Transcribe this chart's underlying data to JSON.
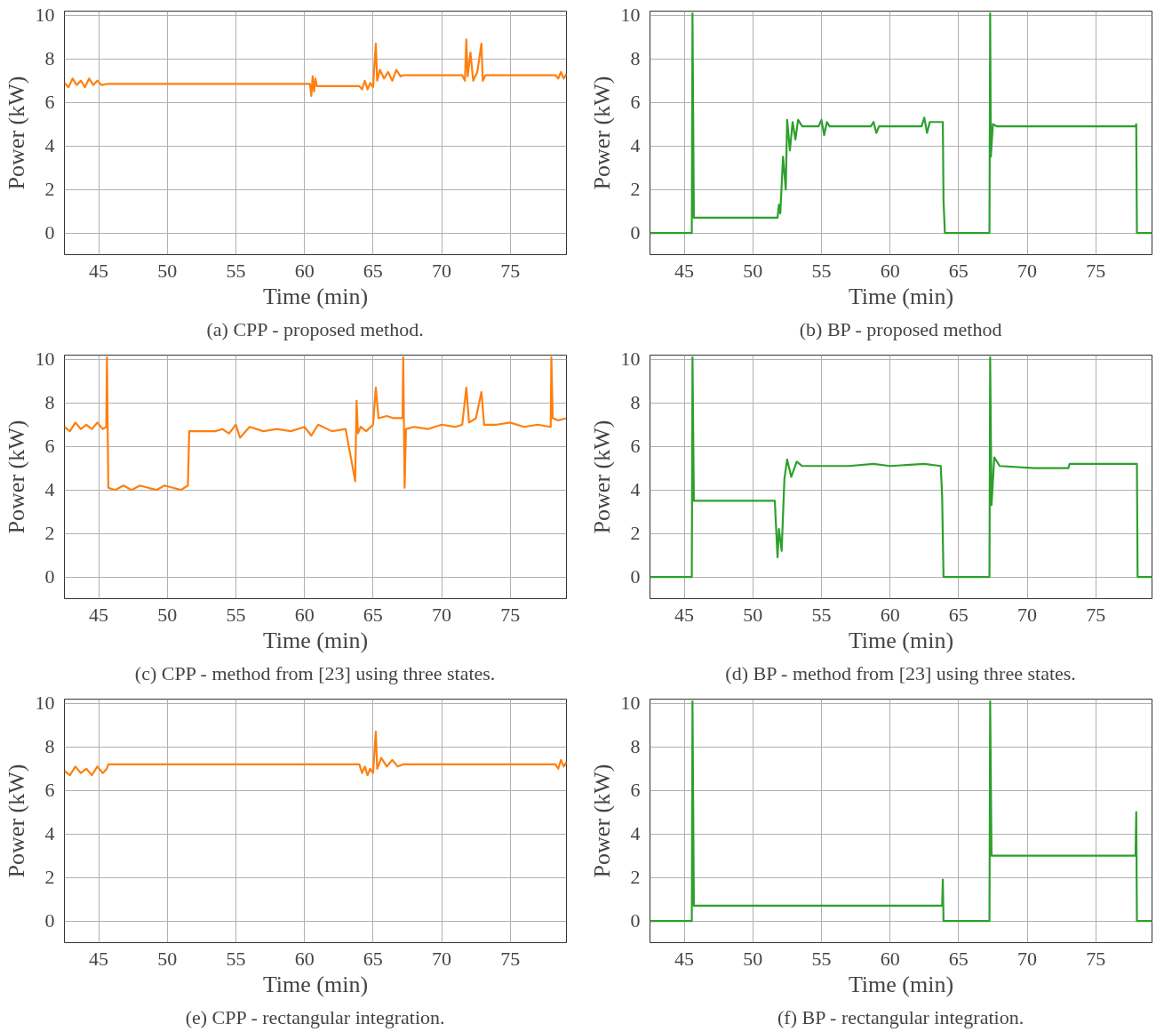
{
  "chart_data": [
    {
      "type": "line",
      "title": "(a) CPP - proposed method.",
      "xlabel": "Time (min)",
      "ylabel": "Power (kW)",
      "xlim": [
        42.5,
        79.1
      ],
      "xticks": [
        45,
        50,
        55,
        60,
        65,
        70,
        75
      ],
      "ylim": [
        -1,
        10.2
      ],
      "yticks": [
        0,
        2,
        4,
        6,
        8,
        10
      ],
      "grid": true,
      "marker": "none",
      "line_style": "solid",
      "series": [
        {
          "color": "#ff7f0e",
          "x": [
            42.5,
            42.8,
            43.1,
            43.4,
            43.7,
            44.0,
            44.3,
            44.6,
            44.9,
            45.2,
            45.6,
            60.4,
            60.5,
            60.6,
            60.7,
            60.8,
            60.9,
            64.0,
            64.2,
            64.4,
            64.6,
            64.8,
            65.0,
            65.2,
            65.3,
            65.5,
            65.8,
            66.1,
            66.4,
            66.7,
            67.0,
            67.2,
            71.5,
            71.7,
            71.8,
            71.9,
            72.1,
            72.3,
            72.6,
            72.9,
            73.0,
            73.2,
            78.3,
            78.5,
            78.7,
            78.9,
            79.1
          ],
          "values": [
            6.9,
            6.7,
            7.1,
            6.8,
            7.0,
            6.7,
            7.1,
            6.8,
            7.0,
            6.8,
            6.85,
            6.85,
            6.3,
            7.2,
            6.5,
            7.1,
            6.75,
            6.75,
            6.6,
            7.0,
            6.6,
            6.9,
            6.7,
            8.7,
            7.0,
            7.5,
            7.1,
            7.4,
            7.0,
            7.5,
            7.2,
            7.25,
            7.25,
            7.0,
            8.9,
            7.2,
            8.3,
            7.0,
            7.4,
            8.7,
            7.0,
            7.25,
            7.25,
            7.1,
            7.4,
            7.1,
            7.3
          ]
        }
      ]
    },
    {
      "type": "line",
      "title": "(b) BP - proposed method",
      "xlabel": "Time (min)",
      "ylabel": "Power (kW)",
      "xlim": [
        42.5,
        79.1
      ],
      "xticks": [
        45,
        50,
        55,
        60,
        65,
        70,
        75
      ],
      "ylim": [
        -1,
        10.2
      ],
      "yticks": [
        0,
        2,
        4,
        6,
        8,
        10
      ],
      "grid": true,
      "marker": "none",
      "line_style": "solid",
      "series": [
        {
          "color": "#2ca02c",
          "x": [
            42.5,
            45.55,
            45.6,
            45.7,
            45.75,
            51.8,
            51.9,
            52.0,
            52.2,
            52.4,
            52.5,
            52.7,
            52.9,
            53.1,
            53.3,
            53.6,
            54.8,
            55.0,
            55.2,
            55.4,
            55.6,
            58.6,
            58.8,
            59.0,
            59.2,
            62.3,
            62.5,
            62.7,
            62.9,
            63.85,
            63.9,
            64.0,
            67.25,
            67.3,
            67.35,
            67.5,
            67.8,
            77.9,
            77.95,
            78.0,
            79.1
          ],
          "values": [
            0,
            0,
            10.1,
            0.7,
            0.7,
            0.7,
            1.3,
            0.9,
            3.5,
            2.0,
            5.2,
            3.8,
            5.1,
            4.3,
            5.2,
            4.9,
            4.9,
            5.2,
            4.5,
            5.1,
            4.9,
            4.9,
            5.1,
            4.6,
            4.9,
            4.9,
            5.3,
            4.6,
            5.1,
            5.1,
            1.5,
            0,
            0,
            10.1,
            3.5,
            5.0,
            4.9,
            4.9,
            5.0,
            0,
            0
          ]
        }
      ]
    },
    {
      "type": "line",
      "title": "(c) CPP - method from [23] using three states.",
      "xlabel": "Time (min)",
      "ylabel": "Power (kW)",
      "xlim": [
        42.5,
        79.1
      ],
      "xticks": [
        45,
        50,
        55,
        60,
        65,
        70,
        75
      ],
      "ylim": [
        -1,
        10.2
      ],
      "yticks": [
        0,
        2,
        4,
        6,
        8,
        10
      ],
      "grid": true,
      "marker": "none",
      "line_style": "solid",
      "series": [
        {
          "color": "#ff7f0e",
          "x": [
            42.5,
            42.9,
            43.3,
            43.7,
            44.1,
            44.5,
            44.9,
            45.3,
            45.55,
            45.6,
            45.7,
            46.2,
            46.8,
            47.4,
            48.0,
            48.6,
            49.2,
            49.8,
            50.4,
            51.0,
            51.5,
            51.6,
            51.7,
            53.5,
            54.0,
            54.5,
            55.0,
            55.3,
            56.0,
            57.0,
            58.0,
            59.0,
            60.0,
            60.5,
            61.0,
            62.0,
            63.0,
            63.7,
            63.8,
            63.9,
            64.1,
            64.5,
            65.0,
            65.2,
            65.4,
            66.0,
            66.5,
            67.15,
            67.2,
            67.3,
            67.4,
            68.0,
            69.0,
            70.0,
            71.0,
            71.5,
            71.8,
            72.0,
            72.5,
            72.9,
            73.1,
            74.0,
            75.0,
            76.0,
            77.0,
            77.95,
            78.0,
            78.1,
            78.5,
            79.1
          ],
          "values": [
            6.9,
            6.7,
            7.1,
            6.8,
            7.0,
            6.8,
            7.1,
            6.8,
            6.9,
            10.1,
            4.1,
            4.0,
            4.2,
            4.0,
            4.2,
            4.1,
            4.0,
            4.2,
            4.1,
            4.0,
            4.2,
            6.7,
            6.7,
            6.7,
            6.8,
            6.6,
            7.0,
            6.4,
            6.9,
            6.7,
            6.8,
            6.7,
            6.9,
            6.5,
            7.0,
            6.7,
            6.8,
            4.4,
            8.1,
            6.6,
            6.9,
            6.7,
            7.0,
            8.7,
            7.3,
            7.4,
            7.3,
            7.3,
            10.1,
            4.1,
            6.8,
            6.9,
            6.8,
            7.0,
            6.9,
            7.0,
            8.7,
            7.1,
            7.3,
            8.5,
            7.0,
            7.0,
            7.1,
            6.9,
            7.0,
            6.9,
            10.1,
            7.3,
            7.2,
            7.3
          ]
        }
      ]
    },
    {
      "type": "line",
      "title": "(d) BP - method from [23] using three states.",
      "xlabel": "Time (min)",
      "ylabel": "Power (kW)",
      "xlim": [
        42.5,
        79.1
      ],
      "xticks": [
        45,
        50,
        55,
        60,
        65,
        70,
        75
      ],
      "ylim": [
        -1,
        10.2
      ],
      "yticks": [
        0,
        2,
        4,
        6,
        8,
        10
      ],
      "grid": true,
      "marker": "none",
      "line_style": "solid",
      "series": [
        {
          "color": "#2ca02c",
          "x": [
            42.5,
            45.55,
            45.6,
            45.7,
            48.0,
            51.6,
            51.8,
            51.9,
            52.1,
            52.3,
            52.5,
            52.8,
            53.2,
            53.6,
            55.0,
            57.0,
            58.8,
            60.0,
            62.5,
            63.7,
            63.8,
            63.9,
            67.25,
            67.3,
            67.4,
            67.6,
            68.0,
            70.5,
            73.0,
            73.1,
            78.0,
            78.05,
            79.1
          ],
          "values": [
            0,
            0,
            10.1,
            3.5,
            3.5,
            3.5,
            0.9,
            2.2,
            1.2,
            4.5,
            5.4,
            4.6,
            5.3,
            5.1,
            5.1,
            5.1,
            5.2,
            5.1,
            5.2,
            5.1,
            3.7,
            0,
            0,
            10.1,
            3.3,
            5.5,
            5.1,
            5.0,
            5.0,
            5.2,
            5.2,
            0,
            0
          ]
        }
      ]
    },
    {
      "type": "line",
      "title": "(e) CPP - rectangular integration.",
      "xlabel": "Time (min)",
      "ylabel": "Power (kW)",
      "xlim": [
        42.5,
        79.1
      ],
      "xticks": [
        45,
        50,
        55,
        60,
        65,
        70,
        75
      ],
      "ylim": [
        -1,
        10.2
      ],
      "yticks": [
        0,
        2,
        4,
        6,
        8,
        10
      ],
      "grid": true,
      "marker": "none",
      "line_style": "solid",
      "series": [
        {
          "color": "#ff7f0e",
          "x": [
            42.5,
            42.9,
            43.3,
            43.7,
            44.1,
            44.5,
            44.9,
            45.3,
            45.6,
            45.7,
            64.0,
            64.2,
            64.4,
            64.6,
            64.8,
            65.0,
            65.2,
            65.3,
            65.6,
            66.0,
            66.4,
            66.8,
            67.2,
            78.3,
            78.5,
            78.7,
            78.9,
            79.1
          ],
          "values": [
            6.9,
            6.7,
            7.1,
            6.8,
            7.0,
            6.7,
            7.1,
            6.8,
            7.0,
            7.2,
            7.2,
            6.8,
            7.1,
            6.7,
            7.0,
            6.8,
            8.7,
            7.0,
            7.5,
            7.1,
            7.4,
            7.1,
            7.2,
            7.2,
            7.0,
            7.4,
            7.1,
            7.3
          ]
        }
      ]
    },
    {
      "type": "line",
      "title": "(f) BP - rectangular integration.",
      "xlabel": "Time (min)",
      "ylabel": "Power (kW)",
      "xlim": [
        42.5,
        79.1
      ],
      "xticks": [
        45,
        50,
        55,
        60,
        65,
        70,
        75
      ],
      "ylim": [
        -1,
        10.2
      ],
      "yticks": [
        0,
        2,
        4,
        6,
        8,
        10
      ],
      "grid": true,
      "marker": "none",
      "line_style": "solid",
      "series": [
        {
          "color": "#2ca02c",
          "x": [
            42.5,
            45.55,
            45.6,
            45.7,
            63.8,
            63.85,
            63.9,
            64.0,
            67.25,
            67.3,
            67.4,
            77.9,
            77.95,
            78.0,
            79.1
          ],
          "values": [
            0,
            0,
            10.1,
            0.7,
            0.7,
            1.9,
            0,
            0,
            0,
            10.1,
            3.0,
            3.0,
            5.0,
            0,
            0
          ]
        }
      ]
    }
  ]
}
